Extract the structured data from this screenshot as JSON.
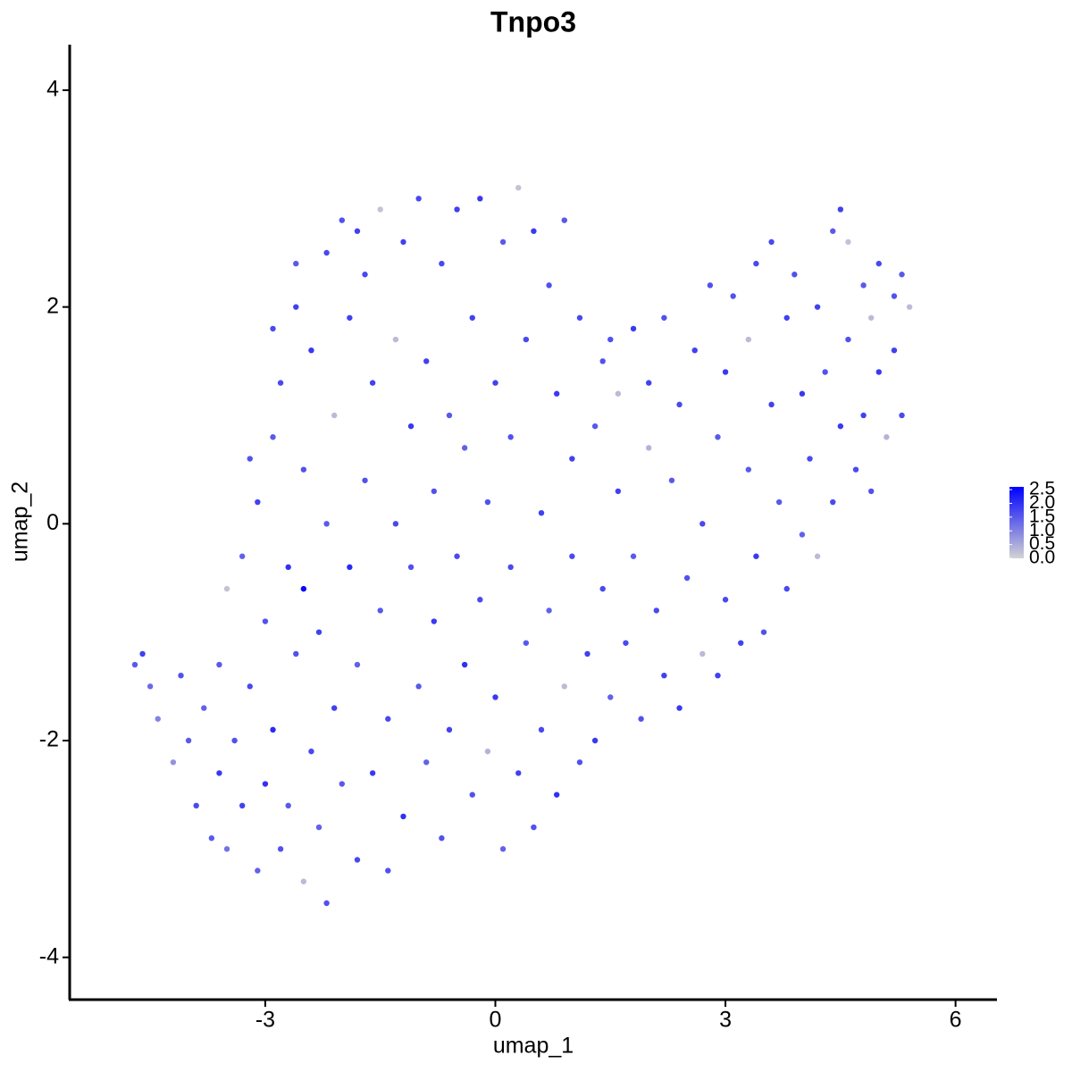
{
  "chart_data": {
    "type": "scatter",
    "title": "Tnpo3",
    "x_label": "umap_1",
    "y_label": "umap_2",
    "x": [
      -4.7,
      -4.6,
      -4.5,
      -4.4,
      -4.2,
      -4.1,
      -4.0,
      -3.9,
      -3.8,
      -3.7,
      -3.6,
      -3.6,
      -3.5,
      -3.5,
      -3.4,
      -3.3,
      -3.3,
      -3.2,
      -3.1,
      -3.1,
      -3.0,
      -3.0,
      -2.9,
      -2.9,
      -2.8,
      -2.8,
      -2.7,
      -2.7,
      -2.6,
      -2.6,
      -2.5,
      -2.5,
      -2.5,
      -2.4,
      -2.4,
      -2.3,
      -2.3,
      -2.2,
      -2.2,
      -2.2,
      -2.1,
      -2.1,
      -2.0,
      -2.0,
      -1.9,
      -1.9,
      -1.8,
      -1.8,
      -1.7,
      -1.7,
      -1.6,
      -1.6,
      -1.5,
      -1.5,
      -1.4,
      -1.4,
      -1.3,
      -1.3,
      -1.2,
      -1.2,
      -1.1,
      -1.1,
      -1.0,
      -1.0,
      -0.9,
      -0.9,
      -0.8,
      -0.8,
      -0.7,
      -0.7,
      -0.6,
      -0.6,
      -0.5,
      -0.5,
      -0.4,
      -0.4,
      -0.3,
      -0.3,
      -0.2,
      -0.2,
      -0.1,
      -0.1,
      0.0,
      0.0,
      0.1,
      0.1,
      0.2,
      0.2,
      0.3,
      0.3,
      0.4,
      0.4,
      0.5,
      0.5,
      0.6,
      0.6,
      0.7,
      0.7,
      0.8,
      0.8,
      0.9,
      0.9,
      1.0,
      1.0,
      1.1,
      1.1,
      1.2,
      1.3,
      1.3,
      1.4,
      1.4,
      1.5,
      1.5,
      1.6,
      1.6,
      1.7,
      1.8,
      1.8,
      1.9,
      2.0,
      2.0,
      2.1,
      2.2,
      2.2,
      2.3,
      2.4,
      2.4,
      2.5,
      2.6,
      2.7,
      2.7,
      2.8,
      2.9,
      2.9,
      3.0,
      3.0,
      3.1,
      3.2,
      3.3,
      3.3,
      3.4,
      3.4,
      3.5,
      3.6,
      3.6,
      3.7,
      3.8,
      3.8,
      3.9,
      4.0,
      4.0,
      4.1,
      4.2,
      4.2,
      4.3,
      4.4,
      4.4,
      4.5,
      4.5,
      4.6,
      4.6,
      4.7,
      4.8,
      4.8,
      4.9,
      4.9,
      5.0,
      5.0,
      5.1,
      5.2,
      5.2,
      5.3,
      5.3,
      5.4,
      -2.9,
      -3.2,
      -2.6,
      -1.8
    ],
    "y": [
      -1.3,
      -1.2,
      -1.5,
      -1.8,
      -2.2,
      -1.4,
      -2.0,
      -2.6,
      -1.7,
      -2.9,
      -2.3,
      -1.3,
      -0.6,
      -3.0,
      -2.0,
      -0.3,
      -2.6,
      -1.5,
      -3.2,
      0.2,
      -2.4,
      -0.9,
      -1.9,
      0.8,
      -3.0,
      1.3,
      -0.4,
      -2.6,
      -1.2,
      2.0,
      -3.3,
      -0.6,
      0.5,
      -2.1,
      1.6,
      -2.8,
      -1.0,
      -3.5,
      0.0,
      2.5,
      -1.7,
      1.0,
      -2.4,
      2.8,
      -0.4,
      1.9,
      -3.1,
      -1.3,
      0.4,
      2.3,
      -2.3,
      1.3,
      -0.8,
      2.9,
      -3.2,
      -1.8,
      0.0,
      1.7,
      2.6,
      -2.7,
      -0.4,
      0.9,
      3.0,
      -1.5,
      -2.2,
      1.5,
      0.3,
      -0.9,
      2.4,
      -2.9,
      -1.9,
      1.0,
      2.9,
      -0.3,
      -1.3,
      0.7,
      -2.5,
      1.9,
      -0.7,
      3.0,
      0.2,
      -2.1,
      1.3,
      -1.6,
      2.6,
      -3.0,
      -0.4,
      0.8,
      3.1,
      -2.3,
      1.7,
      -1.1,
      2.7,
      -2.8,
      0.1,
      -1.9,
      2.2,
      -0.8,
      1.2,
      -2.5,
      2.8,
      -1.5,
      -0.3,
      0.6,
      -2.2,
      1.9,
      -1.2,
      0.9,
      -2.0,
      1.5,
      -0.6,
      1.7,
      -1.6,
      0.3,
      1.2,
      -1.1,
      1.8,
      -0.3,
      -1.8,
      1.3,
      0.7,
      -0.8,
      1.9,
      -1.4,
      0.4,
      1.1,
      -1.7,
      -0.5,
      1.6,
      -1.2,
      0.0,
      2.2,
      -1.4,
      0.8,
      1.4,
      -0.7,
      2.1,
      -1.1,
      0.5,
      1.7,
      2.4,
      -0.3,
      -1.0,
      1.1,
      2.6,
      0.2,
      -0.6,
      1.9,
      2.3,
      1.2,
      -0.1,
      0.6,
      2.0,
      -0.3,
      1.4,
      2.7,
      0.2,
      2.9,
      0.9,
      1.7,
      2.6,
      0.5,
      2.2,
      1.0,
      1.9,
      0.3,
      2.4,
      1.4,
      0.8,
      2.1,
      1.6,
      2.3,
      1.0,
      2.0,
      1.8,
      0.6,
      2.4,
      2.7
    ],
    "values": [
      1.5,
      1.8,
      1.3,
      1.0,
      0.8,
      1.6,
      1.5,
      1.7,
      1.4,
      1.5,
      1.9,
      1.5,
      0.2,
      1.2,
      1.6,
      1.4,
      1.8,
      1.7,
      1.4,
      1.8,
      2.0,
      1.6,
      2.1,
      1.5,
      1.6,
      1.7,
      2.0,
      1.5,
      1.6,
      1.8,
      0.3,
      2.5,
      1.6,
      1.7,
      1.9,
      1.4,
      1.8,
      1.6,
      1.5,
      1.7,
      1.8,
      0.3,
      1.5,
      1.6,
      2.1,
      1.8,
      1.7,
      1.4,
      1.6,
      1.7,
      1.9,
      1.8,
      1.5,
      0.2,
      1.6,
      1.7,
      1.7,
      0.3,
      1.8,
      2.0,
      1.6,
      1.9,
      1.7,
      1.5,
      1.4,
      1.8,
      1.6,
      1.9,
      1.7,
      1.6,
      1.8,
      1.5,
      1.8,
      1.7,
      2.0,
      1.4,
      1.6,
      1.8,
      1.7,
      1.9,
      1.6,
      0.4,
      1.8,
      1.9,
      1.5,
      1.4,
      1.7,
      1.6,
      0.2,
      1.8,
      1.7,
      1.5,
      1.9,
      1.6,
      1.8,
      1.7,
      1.6,
      1.4,
      1.9,
      2.0,
      1.5,
      0.3,
      1.7,
      1.8,
      1.6,
      1.7,
      1.8,
      1.5,
      1.9,
      1.6,
      1.7,
      1.6,
      1.4,
      1.8,
      0.3,
      1.7,
      1.9,
      1.5,
      1.6,
      1.8,
      0.4,
      1.7,
      1.6,
      1.8,
      1.5,
      1.7,
      1.9,
      1.6,
      1.8,
      0.3,
      1.7,
      1.6,
      1.8,
      1.5,
      1.9,
      1.7,
      1.6,
      1.8,
      1.5,
      0.3,
      1.7,
      1.9,
      1.6,
      1.8,
      1.7,
      1.5,
      1.7,
      1.8,
      1.6,
      1.9,
      1.4,
      1.7,
      1.8,
      0.3,
      1.6,
      1.5,
      1.7,
      1.8,
      1.9,
      1.6,
      0.2,
      1.7,
      1.5,
      1.8,
      0.3,
      1.6,
      1.7,
      1.9,
      0.4,
      1.6,
      1.8,
      1.5,
      1.7,
      0.3,
      1.7,
      1.6,
      1.5,
      1.8
    ],
    "xlim": [
      -5.55,
      6.54
    ],
    "ylim": [
      -4.39,
      4.42
    ],
    "xticks": [
      -3,
      0,
      3,
      6
    ],
    "yticks": [
      -4,
      -2,
      0,
      2,
      4
    ],
    "colorbar": {
      "lim": [
        0,
        2.6
      ],
      "low_color": "#d3d3d3",
      "high_color": "#0000ff",
      "ticks": [
        {
          "value": 0,
          "label": "0.0"
        },
        {
          "value": 0.5,
          "label": "0.5"
        },
        {
          "value": 1,
          "label": "1.0"
        },
        {
          "value": 1.5,
          "label": "1.5"
        },
        {
          "value": 2,
          "label": "2.0"
        },
        {
          "value": 2.5,
          "label": "2.5"
        }
      ]
    }
  }
}
